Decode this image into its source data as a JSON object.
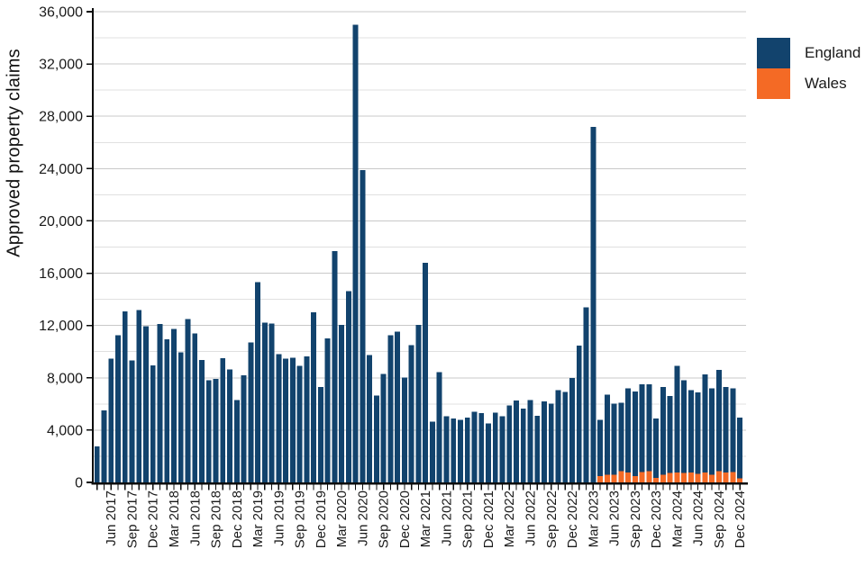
{
  "chart_data": {
    "type": "bar",
    "stacked": true,
    "title": "",
    "xlabel": "",
    "ylabel": "Approved property claims",
    "ylim": [
      0,
      36000
    ],
    "ytick_step": 4000,
    "gridline_step": 2000,
    "grid": "on",
    "legend_position": "top-right",
    "y_tick_labels": [
      "0",
      "4,000",
      "8,000",
      "12,000",
      "16,000",
      "20,000",
      "24,000",
      "28,000",
      "32,000",
      "36,000"
    ],
    "x_tick_labels": [
      "Jun 2017",
      "Sep 2017",
      "Dec 2017",
      "Mar 2018",
      "Jun 2018",
      "Sep 2018",
      "Dec 2018",
      "Mar 2019",
      "Jun 2019",
      "Sep 2019",
      "Dec 2019",
      "Mar 2020",
      "Jun 2020",
      "Sep 2020",
      "Dec 2020",
      "Mar 2021",
      "Jun 2021",
      "Sep 2021",
      "Dec 2021",
      "Mar 2022",
      "Jun 2022",
      "Sep 2022",
      "Dec 2022",
      "Mar 2023",
      "Jun 2023",
      "Sep 2023",
      "Dec 2023",
      "Mar 2024",
      "Jun 2024",
      "Sep 2024",
      "Dec 2024"
    ],
    "months": [
      "Apr 2017",
      "May 2017",
      "Jun 2017",
      "Jul 2017",
      "Aug 2017",
      "Sep 2017",
      "Oct 2017",
      "Nov 2017",
      "Dec 2017",
      "Jan 2018",
      "Feb 2018",
      "Mar 2018",
      "Apr 2018",
      "May 2018",
      "Jun 2018",
      "Jul 2018",
      "Aug 2018",
      "Sep 2018",
      "Oct 2018",
      "Nov 2018",
      "Dec 2018",
      "Jan 2019",
      "Feb 2019",
      "Mar 2019",
      "Apr 2019",
      "May 2019",
      "Jun 2019",
      "Jul 2019",
      "Aug 2019",
      "Sep 2019",
      "Oct 2019",
      "Nov 2019",
      "Dec 2019",
      "Jan 2020",
      "Feb 2020",
      "Mar 2020",
      "Apr 2020",
      "May 2020",
      "Jun 2020",
      "Jul 2020",
      "Aug 2020",
      "Sep 2020",
      "Oct 2020",
      "Nov 2020",
      "Dec 2020",
      "Jan 2021",
      "Feb 2021",
      "Mar 2021",
      "Apr 2021",
      "May 2021",
      "Jun 2021",
      "Jul 2021",
      "Aug 2021",
      "Sep 2021",
      "Oct 2021",
      "Nov 2021",
      "Dec 2021",
      "Jan 2022",
      "Feb 2022",
      "Mar 2022",
      "Apr 2022",
      "May 2022",
      "Jun 2022",
      "Jul 2022",
      "Aug 2022",
      "Sep 2022",
      "Oct 2022",
      "Nov 2022",
      "Dec 2022",
      "Jan 2023",
      "Feb 2023",
      "Mar 2023",
      "Apr 2023",
      "May 2023",
      "Jun 2023",
      "Jul 2023",
      "Aug 2023",
      "Sep 2023",
      "Oct 2023",
      "Nov 2023",
      "Dec 2023",
      "Jan 2024",
      "Feb 2024",
      "Mar 2024",
      "Apr 2024",
      "May 2024",
      "Jun 2024",
      "Jul 2024",
      "Aug 2024",
      "Sep 2024",
      "Oct 2024",
      "Nov 2024",
      "Dec 2024"
    ],
    "series": [
      {
        "name": "England",
        "color": "#12436d",
        "values": [
          2750,
          5500,
          9480,
          11270,
          13080,
          9340,
          13170,
          11950,
          8950,
          12100,
          10940,
          11750,
          9960,
          12500,
          11400,
          9350,
          7800,
          7900,
          9500,
          8650,
          6300,
          8200,
          10700,
          15300,
          12230,
          12160,
          9820,
          9480,
          9520,
          8900,
          9640,
          13000,
          7300,
          11000,
          17700,
          12050,
          14640,
          35000,
          23900,
          9750,
          6650,
          8300,
          11240,
          11540,
          8030,
          10500,
          12050,
          16800,
          4650,
          8440,
          5050,
          4870,
          4780,
          4940,
          5390,
          5300,
          4500,
          5350,
          5050,
          5870,
          6260,
          5640,
          6310,
          5100,
          6200,
          6010,
          7070,
          6930,
          7980,
          10460,
          13400,
          27200,
          4290,
          6150,
          5470,
          5230,
          6420,
          6470,
          6710,
          6630,
          4560,
          6730,
          5890,
          8140,
          7090,
          6290,
          6240,
          7490,
          6610,
          7730,
          6540,
          6390,
          4650
        ]
      },
      {
        "name": "Wales",
        "color": "#f46a25",
        "values": [
          0,
          0,
          0,
          0,
          0,
          0,
          0,
          0,
          0,
          0,
          0,
          0,
          0,
          0,
          0,
          0,
          0,
          0,
          0,
          0,
          0,
          0,
          0,
          0,
          0,
          0,
          0,
          0,
          0,
          0,
          0,
          0,
          0,
          0,
          0,
          0,
          0,
          0,
          0,
          0,
          0,
          0,
          0,
          0,
          0,
          0,
          0,
          0,
          0,
          0,
          0,
          0,
          0,
          0,
          0,
          0,
          0,
          0,
          0,
          0,
          0,
          0,
          0,
          0,
          0,
          0,
          0,
          0,
          0,
          0,
          0,
          0,
          480,
          570,
          570,
          870,
          760,
          480,
          790,
          870,
          340,
          570,
          710,
          760,
          710,
          760,
          640,
          760,
          570,
          870,
          760,
          790,
          300
        ]
      }
    ],
    "colors": {
      "england": "#12436d",
      "wales": "#f46a25",
      "gridline_minor": "#e0e0e0",
      "gridline_major": "#c9c9c9",
      "axis": "#0b0c0c",
      "text": "#1a1a1a"
    }
  }
}
